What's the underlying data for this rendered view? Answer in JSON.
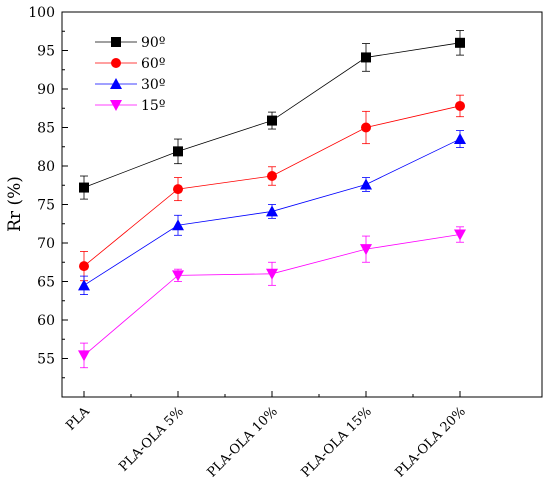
{
  "chart_data": {
    "type": "line",
    "title": "",
    "xlabel": "",
    "ylabel": "Rr (%)",
    "categories": [
      "PLA",
      "PLA-OLA 5%",
      "PLA-OLA 10%",
      "PLA-OLA 15%",
      "PLA-OLA 20%"
    ],
    "ylim": [
      50,
      100
    ],
    "yticks": [
      55,
      60,
      65,
      70,
      75,
      80,
      85,
      90,
      95,
      100
    ],
    "legend_position": "top-left",
    "grid": false,
    "series": [
      {
        "name": "90º",
        "color": "#000000",
        "marker": "square",
        "values": [
          77.2,
          81.9,
          85.9,
          94.1,
          96.0
        ],
        "errors": [
          1.5,
          1.6,
          1.1,
          1.8,
          1.6
        ]
      },
      {
        "name": "60º",
        "color": "#ff0000",
        "marker": "circle",
        "values": [
          67.0,
          77.0,
          78.7,
          85.0,
          87.8
        ],
        "errors": [
          1.9,
          1.5,
          1.2,
          2.1,
          1.4
        ]
      },
      {
        "name": "30º",
        "color": "#0000ff",
        "marker": "triangle-up",
        "values": [
          64.5,
          72.3,
          74.1,
          77.6,
          83.5
        ],
        "errors": [
          1.2,
          1.3,
          0.9,
          0.9,
          1.1
        ]
      },
      {
        "name": "15º",
        "color": "#ff00ff",
        "marker": "triangle-down",
        "values": [
          55.4,
          65.8,
          66.0,
          69.2,
          71.1
        ],
        "errors": [
          1.6,
          0.8,
          1.5,
          1.7,
          1.0
        ]
      }
    ]
  }
}
